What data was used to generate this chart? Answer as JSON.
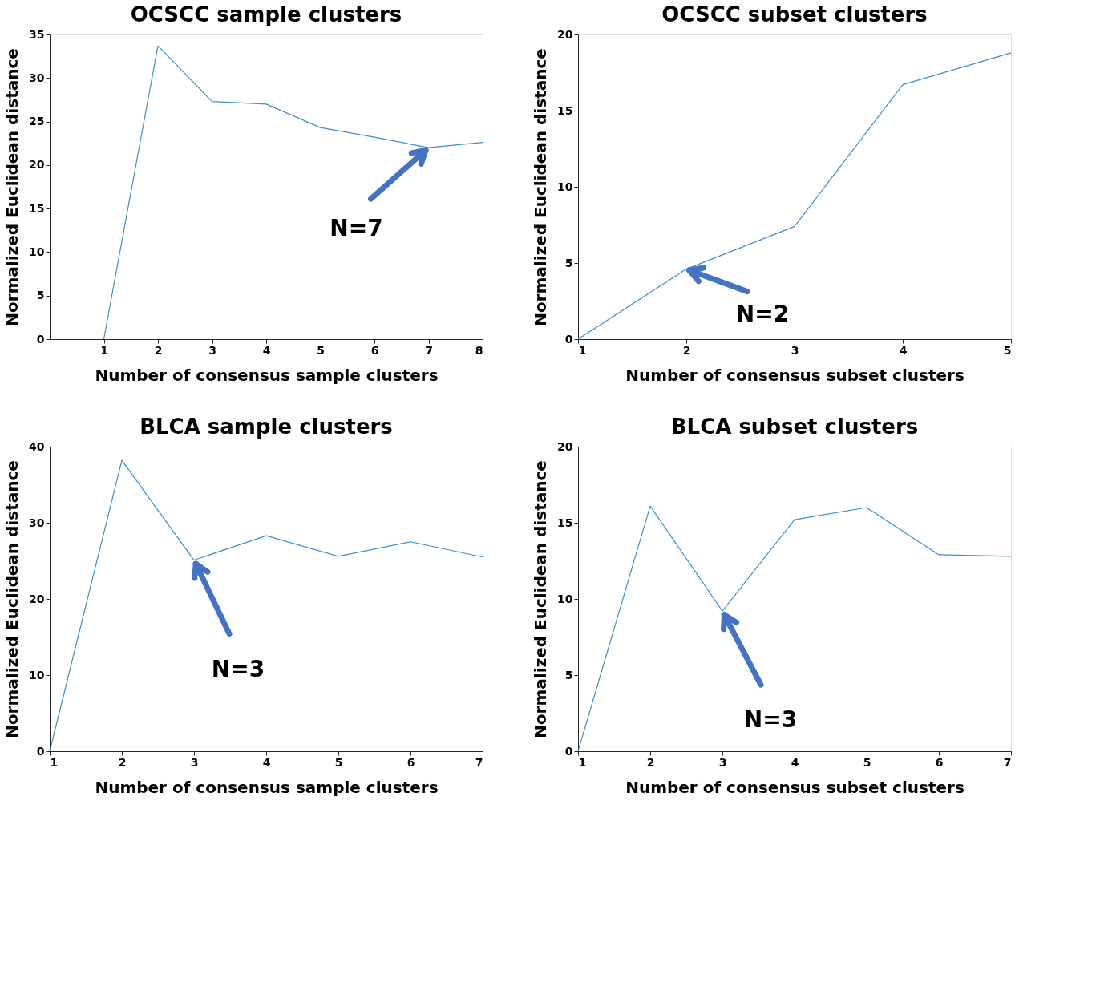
{
  "chart_data": [
    {
      "type": "line",
      "title": "OCSCC sample clusters",
      "xlabel": "Number of consensus sample clusters",
      "ylabel": "Normalized Euclidean distance",
      "x": [
        1,
        2,
        3,
        4,
        5,
        6,
        7,
        8
      ],
      "series": [
        {
          "color": "#3b8fd6",
          "values": [
            0,
            33.7,
            27.3,
            27.0,
            24.3,
            23.2,
            22.0,
            22.6
          ]
        }
      ],
      "xlim": [
        0,
        8
      ],
      "xticks": [
        1,
        2,
        3,
        4,
        5,
        6,
        7,
        8
      ],
      "ylim": [
        0,
        35
      ],
      "yticks": [
        0,
        5,
        10,
        15,
        20,
        25,
        30,
        35
      ],
      "grid": false,
      "annotations": [
        {
          "text": "N=7",
          "x": 7,
          "y": 22.0
        }
      ]
    },
    {
      "type": "line",
      "title": "OCSCC subset clusters",
      "xlabel": "Number of consensus subset clusters",
      "ylabel": "Normalized Euclidean distance",
      "x": [
        1,
        2,
        3,
        4,
        5
      ],
      "series": [
        {
          "color": "#3b8fd6",
          "values": [
            0,
            4.6,
            7.4,
            16.7,
            18.8
          ]
        }
      ],
      "xlim": [
        1,
        5
      ],
      "xticks": [
        1,
        2,
        3,
        4,
        5
      ],
      "ylim": [
        0,
        20
      ],
      "yticks": [
        0,
        5,
        10,
        15,
        20
      ],
      "grid": false,
      "annotations": [
        {
          "text": "N=2",
          "x": 2,
          "y": 4.6
        }
      ]
    },
    {
      "type": "line",
      "title": "BLCA sample clusters",
      "xlabel": "Number of consensus sample clusters",
      "ylabel": "Normalized Euclidean distance",
      "x": [
        1,
        2,
        3,
        4,
        5,
        6,
        7
      ],
      "series": [
        {
          "color": "#3b8fd6",
          "values": [
            0,
            38.2,
            25.1,
            28.3,
            25.6,
            27.5,
            25.5
          ]
        }
      ],
      "xlim": [
        1,
        7
      ],
      "xticks": [
        1,
        2,
        3,
        4,
        5,
        6,
        7
      ],
      "ylim": [
        0,
        40
      ],
      "yticks": [
        0,
        10,
        20,
        30,
        40
      ],
      "grid": false,
      "annotations": [
        {
          "text": "N=3",
          "x": 3,
          "y": 25.1
        }
      ]
    },
    {
      "type": "line",
      "title": "BLCA subset clusters",
      "xlabel": "Number of consensus subset clusters",
      "ylabel": "Normalized Euclidean distance",
      "x": [
        1,
        2,
        3,
        4,
        5,
        6,
        7
      ],
      "series": [
        {
          "color": "#3b8fd6",
          "values": [
            0,
            16.1,
            9.2,
            15.2,
            16.0,
            12.9,
            12.8
          ]
        }
      ],
      "xlim": [
        1,
        7
      ],
      "xticks": [
        1,
        2,
        3,
        4,
        5,
        6,
        7
      ],
      "ylim": [
        0,
        20
      ],
      "yticks": [
        0,
        5,
        10,
        15,
        20
      ],
      "grid": false,
      "annotations": [
        {
          "text": "N=3",
          "x": 3,
          "y": 9.2
        }
      ]
    }
  ]
}
